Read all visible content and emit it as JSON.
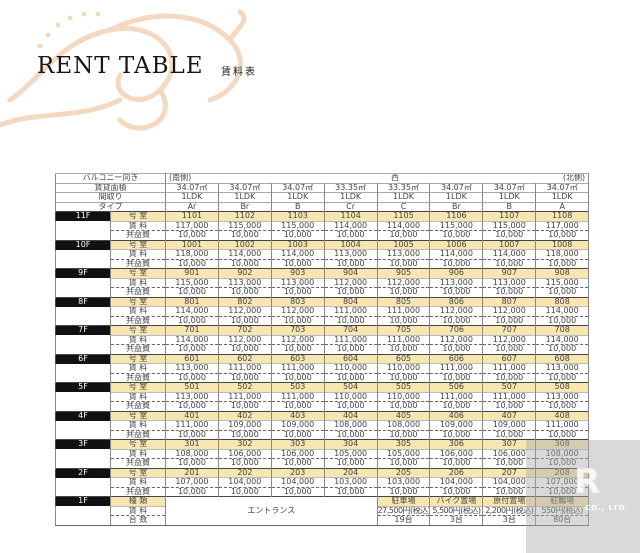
{
  "header": {
    "title": "RENT TABLE",
    "subtitle": "賃料表"
  },
  "colors": {
    "room_row": "#f8e6b0",
    "floor_label_bg": "#111111",
    "ornament": "#f3d9c2"
  },
  "table": {
    "labels": {
      "balcony": "バルコニー向き",
      "area": "賃貸面積",
      "layout": "間取り",
      "type": "タイプ",
      "room": "号 室",
      "rent": "賃 料",
      "fee": "共益費"
    },
    "balcony": {
      "south": "(南側)",
      "west": "西",
      "north": "(北側)"
    },
    "areas": [
      "34.07㎡",
      "34.07㎡",
      "34.07㎡",
      "33.35㎡",
      "33.35㎡",
      "34.07㎡",
      "34.07㎡",
      "34.07㎡"
    ],
    "layouts": [
      "1LDK",
      "1LDK",
      "1LDK",
      "1LDK",
      "1LDK",
      "1LDK",
      "1LDK",
      "1LDK"
    ],
    "types": [
      "Ar",
      "Br",
      "B",
      "Cr",
      "C",
      "Br",
      "B",
      "A"
    ],
    "floors": [
      {
        "floor": "11F",
        "rooms": [
          "1101",
          "1102",
          "1103",
          "1104",
          "1105",
          "1106",
          "1107",
          "1108"
        ],
        "rents": [
          "117,000",
          "115,000",
          "115,000",
          "114,000",
          "114,000",
          "115,000",
          "115,000",
          "117,000"
        ],
        "fees": [
          "10,000",
          "10,000",
          "10,000",
          "10,000",
          "10,000",
          "10,000",
          "10,000",
          "10,000"
        ]
      },
      {
        "floor": "10F",
        "rooms": [
          "1001",
          "1002",
          "1003",
          "1004",
          "1005",
          "1006",
          "1007",
          "1008"
        ],
        "rents": [
          "118,000",
          "114,000",
          "114,000",
          "113,000",
          "113,000",
          "114,000",
          "114,000",
          "118,000"
        ],
        "fees": [
          "10,000",
          "10,000",
          "10,000",
          "10,000",
          "10,000",
          "10,000",
          "10,000",
          "10,000"
        ]
      },
      {
        "floor": "9F",
        "rooms": [
          "901",
          "902",
          "903",
          "904",
          "905",
          "906",
          "907",
          "908"
        ],
        "rents": [
          "115,000",
          "113,000",
          "113,000",
          "112,000",
          "112,000",
          "113,000",
          "113,000",
          "115,000"
        ],
        "fees": [
          "10,000",
          "10,000",
          "10,000",
          "10,000",
          "10,000",
          "10,000",
          "10,000",
          "10,000"
        ]
      },
      {
        "floor": "8F",
        "rooms": [
          "801",
          "802",
          "803",
          "804",
          "805",
          "806",
          "807",
          "808"
        ],
        "rents": [
          "114,000",
          "112,000",
          "112,000",
          "111,000",
          "111,000",
          "112,000",
          "112,000",
          "114,000"
        ],
        "fees": [
          "10,000",
          "10,000",
          "10,000",
          "10,000",
          "10,000",
          "10,000",
          "10,000",
          "10,000"
        ]
      },
      {
        "floor": "7F",
        "rooms": [
          "701",
          "702",
          "703",
          "704",
          "705",
          "706",
          "707",
          "708"
        ],
        "rents": [
          "114,000",
          "112,000",
          "112,000",
          "111,000",
          "111,000",
          "112,000",
          "112,000",
          "114,000"
        ],
        "fees": [
          "10,000",
          "10,000",
          "10,000",
          "10,000",
          "10,000",
          "10,000",
          "10,000",
          "10,000"
        ]
      },
      {
        "floor": "6F",
        "rooms": [
          "601",
          "602",
          "603",
          "604",
          "605",
          "606",
          "607",
          "608"
        ],
        "rents": [
          "113,000",
          "111,000",
          "111,000",
          "110,000",
          "110,000",
          "111,000",
          "111,000",
          "113,000"
        ],
        "fees": [
          "10,000",
          "10,000",
          "10,000",
          "10,000",
          "10,000",
          "10,000",
          "10,000",
          "10,000"
        ]
      },
      {
        "floor": "5F",
        "rooms": [
          "501",
          "502",
          "503",
          "504",
          "505",
          "506",
          "507",
          "508"
        ],
        "rents": [
          "113,000",
          "111,000",
          "111,000",
          "110,000",
          "110,000",
          "111,000",
          "111,000",
          "113,000"
        ],
        "fees": [
          "10,000",
          "10,000",
          "10,000",
          "10,000",
          "10,000",
          "10,000",
          "10,000",
          "10,000"
        ]
      },
      {
        "floor": "4F",
        "rooms": [
          "401",
          "402",
          "403",
          "404",
          "405",
          "406",
          "407",
          "408"
        ],
        "rents": [
          "111,000",
          "109,000",
          "109,000",
          "108,000",
          "108,000",
          "109,000",
          "109,000",
          "111,000"
        ],
        "fees": [
          "10,000",
          "10,000",
          "10,000",
          "10,000",
          "10,000",
          "10,000",
          "10,000",
          "10,000"
        ]
      },
      {
        "floor": "3F",
        "rooms": [
          "301",
          "302",
          "303",
          "304",
          "305",
          "306",
          "307",
          "308"
        ],
        "rents": [
          "108,000",
          "106,000",
          "106,000",
          "105,000",
          "105,000",
          "106,000",
          "106,000",
          "108,000"
        ],
        "fees": [
          "10,000",
          "10,000",
          "10,000",
          "10,000",
          "10,000",
          "10,000",
          "10,000",
          "10,000"
        ]
      },
      {
        "floor": "2F",
        "rooms": [
          "201",
          "202",
          "203",
          "204",
          "205",
          "206",
          "207",
          "208"
        ],
        "rents": [
          "107,000",
          "104,000",
          "104,000",
          "103,000",
          "103,000",
          "104,000",
          "104,000",
          "107,000"
        ],
        "fees": [
          "10,000",
          "10,000",
          "10,000",
          "10,000",
          "10,000",
          "10,000",
          "10,000",
          "10,000"
        ]
      }
    ],
    "ground": {
      "floor": "1F",
      "labels": {
        "kind": "種 類",
        "rent": "賃 料",
        "count": "台 数"
      },
      "entrance": "エントランス",
      "parking": [
        {
          "kind": "駐車場",
          "rent": "27,500円(税込)",
          "count": "19台"
        },
        {
          "kind": "バイク置場",
          "rent": "5,500円(税込)",
          "count": "3台"
        },
        {
          "kind": "原付置場",
          "rent": "2,200円(税込)",
          "count": "3台"
        },
        {
          "kind": "駐輪場",
          "rent": "550円(税込)",
          "count": "80台"
        }
      ]
    }
  },
  "watermark": {
    "text": "CO., LTD."
  }
}
